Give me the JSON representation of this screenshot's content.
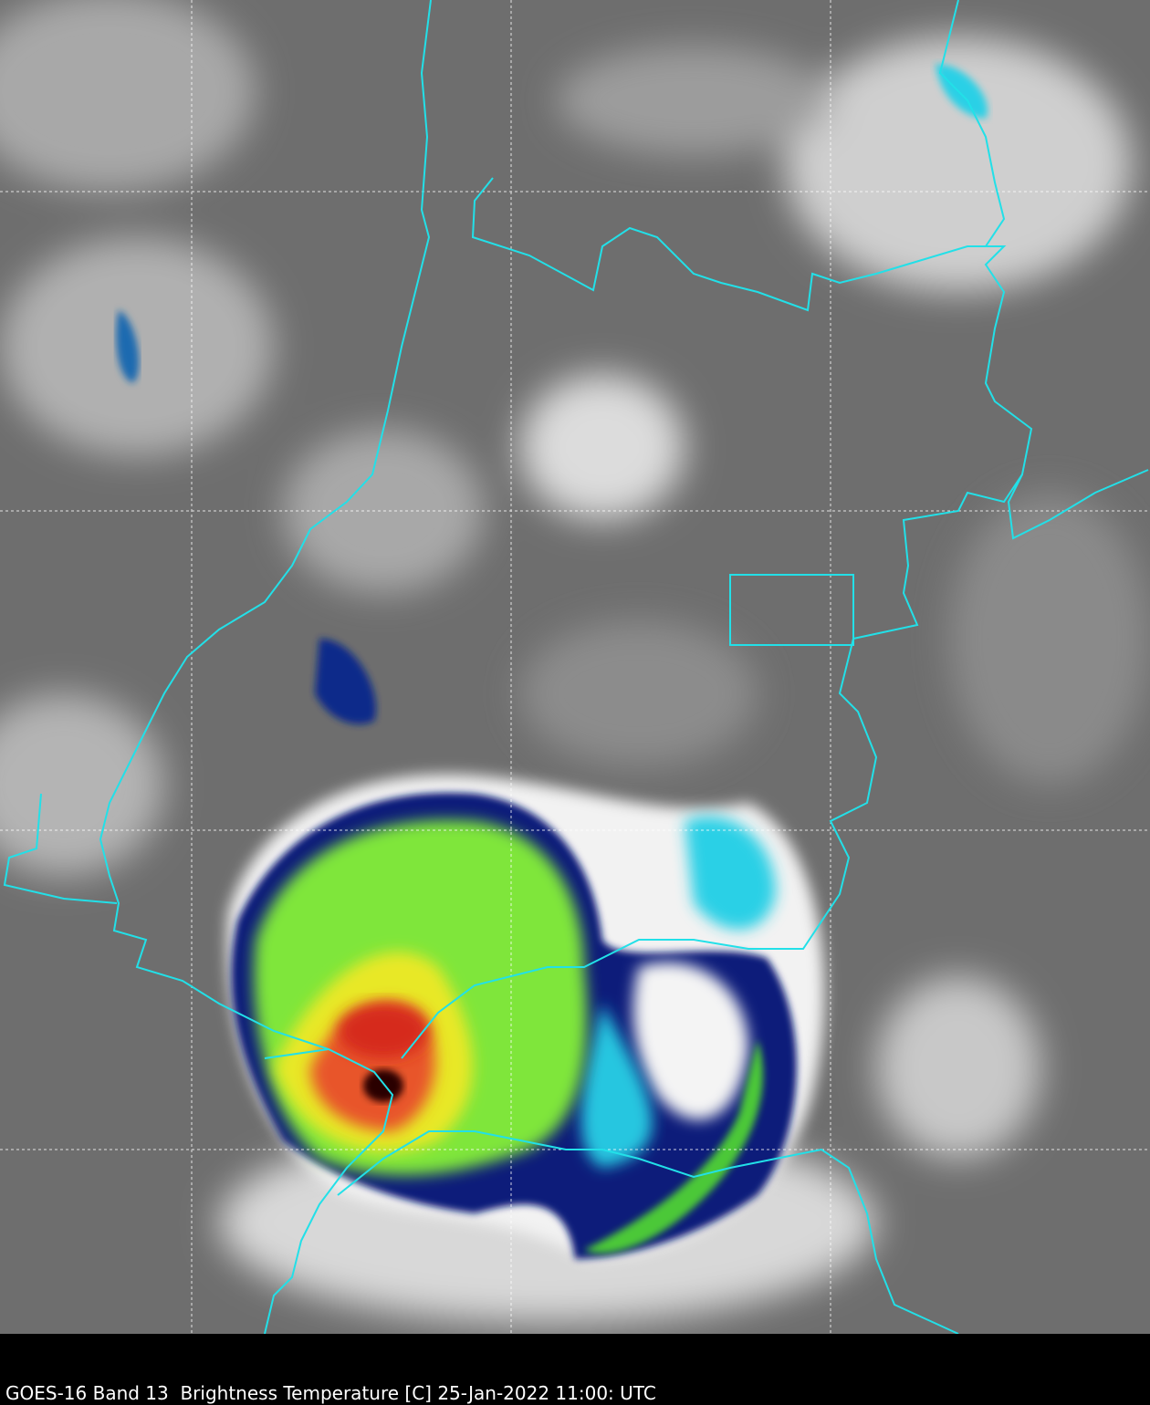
{
  "caption": "GOES-16 Band 13  Brightness Temperature [C] 25-Jan-2022 11:00: UTC"
}
